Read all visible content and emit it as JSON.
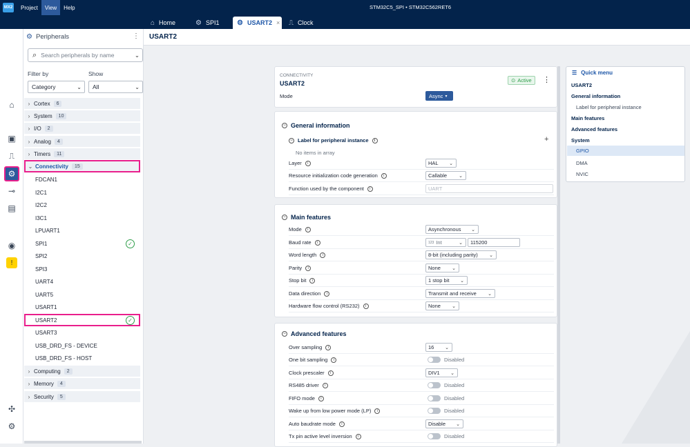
{
  "topbar": {
    "logo": "MX2",
    "menu": [
      "Project",
      "View",
      "Help"
    ],
    "active_menu": "View",
    "project": "STM32C5_SPI  •  STM32C562RET6"
  },
  "tabs": [
    {
      "label": "Home",
      "icon": "home-icon"
    },
    {
      "label": "SPI1",
      "icon": "peripheral-icon"
    },
    {
      "label": "USART2",
      "icon": "peripheral-icon"
    },
    {
      "label": "Clock",
      "icon": "clock-icon"
    }
  ],
  "rail_icons": [
    "home-icon",
    "chip-icon",
    "pinout-icon",
    "peripherals-icon",
    "commit-icon",
    "board-icon",
    "target-icon",
    "warning-icon",
    "plugin-icon",
    "settings-icon"
  ],
  "panel": {
    "title": "Peripherals",
    "search_placeholder": "Search peripherals by name",
    "filter_label": "Filter by",
    "filter_value": "Category",
    "show_label": "Show",
    "show_value": "All"
  },
  "categories": [
    {
      "name": "Cortex",
      "count": "6"
    },
    {
      "name": "System",
      "count": "10"
    },
    {
      "name": "I/O",
      "count": "2"
    },
    {
      "name": "Analog",
      "count": "4"
    },
    {
      "name": "Timers",
      "count": "11"
    },
    {
      "name": "Connectivity",
      "count": "15"
    },
    {
      "name": "Computing",
      "count": "2"
    },
    {
      "name": "Memory",
      "count": "4"
    },
    {
      "name": "Security",
      "count": "5"
    }
  ],
  "connectivity_items": [
    "FDCAN1",
    "I2C1",
    "I2C2",
    "I3C1",
    "LPUART1",
    "SPI1",
    "SPI2",
    "SPI3",
    "UART4",
    "UART5",
    "USART1",
    "USART2",
    "USART3",
    "USB_DRD_FS - DEVICE",
    "USB_DRD_FS - HOST"
  ],
  "header": {
    "title": "USART2"
  },
  "card_top": {
    "category": "CONNECTIVITY",
    "name": "USART2",
    "status": "Active",
    "mode_label": "Mode",
    "mode_value": "Async"
  },
  "general": {
    "title": "General information",
    "label_section": "Label for peripheral instance",
    "empty": "No items in array",
    "rows": [
      {
        "label": "Layer",
        "value": "HAL"
      },
      {
        "label": "Resource initialization code generation",
        "value": "Callable"
      },
      {
        "label": "Function used by the component",
        "value": "UART"
      }
    ]
  },
  "main": {
    "title": "Main features",
    "rows": [
      {
        "label": "Mode",
        "value": "Asynchronous"
      },
      {
        "label": "Baud rate",
        "value": "115200",
        "unit": "Int",
        "unit_prefix": "123"
      },
      {
        "label": "Word length",
        "value": "8-bit (including parity)"
      },
      {
        "label": "Parity",
        "value": "None"
      },
      {
        "label": "Stop bit",
        "value": "1 stop bit"
      },
      {
        "label": "Data direction",
        "value": "Transmit and receive"
      },
      {
        "label": "Hardware flow control (RS232)",
        "value": "None"
      }
    ]
  },
  "advanced": {
    "title": "Advanced features",
    "rows": [
      {
        "label": "Over sampling",
        "value": "16"
      },
      {
        "label": "One bit sampling",
        "value": "Disabled"
      },
      {
        "label": "Clock prescaler",
        "value": "DIV1"
      },
      {
        "label": "RS485 driver",
        "value": "Disabled"
      },
      {
        "label": "FIFO mode",
        "value": "Disabled"
      },
      {
        "label": "Wake up from low power mode (LP)",
        "value": "Disabled"
      },
      {
        "label": "Auto baudrate mode",
        "value": "Disable"
      },
      {
        "label": "Tx pin active level inversion",
        "value": "Disabled"
      }
    ]
  },
  "quick_menu": {
    "title": "Quick menu",
    "items": [
      "USART2",
      "General information",
      "Label for peripheral instance",
      "Main features",
      "Advanced features",
      "System",
      "GPIO",
      "DMA",
      "NVIC"
    ]
  }
}
